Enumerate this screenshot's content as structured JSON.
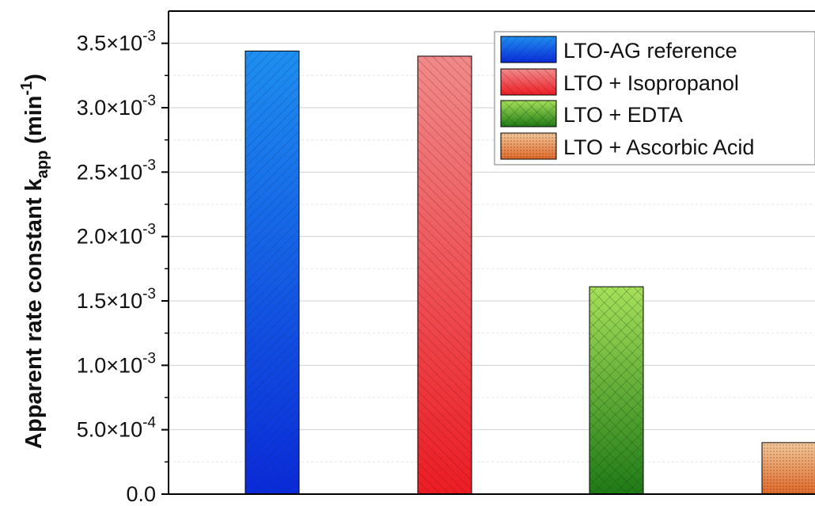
{
  "chart_data": {
    "type": "bar",
    "categories": [
      "LTO-AG reference",
      "LTO + Isopropanol",
      "LTO + EDTA",
      "LTO + Ascorbic Acid"
    ],
    "series": [
      {
        "name": "Apparent rate constant",
        "values": [
          0.00344,
          0.0034,
          0.00161,
          0.0004
        ],
        "colors": [
          "#1976e8",
          "#e8323a",
          "#6cc43a",
          "#d48a4e"
        ]
      }
    ],
    "ylabel": {
      "main": "Apparent rate constant k",
      "subscript": "app",
      "unit_open": " (min",
      "unit_sup": "-1",
      "unit_close": ")"
    },
    "ylim": [
      0,
      0.00375
    ],
    "yticks": [
      {
        "value": 0,
        "mantissa": "0.0",
        "exponent": ""
      },
      {
        "value": 0.0005,
        "mantissa": "5.0×10",
        "exponent": "-4"
      },
      {
        "value": 0.001,
        "mantissa": "1.0×10",
        "exponent": "-3"
      },
      {
        "value": 0.0015,
        "mantissa": "1.5×10",
        "exponent": "-3"
      },
      {
        "value": 0.002,
        "mantissa": "2.0×10",
        "exponent": "-3"
      },
      {
        "value": 0.0025,
        "mantissa": "2.5×10",
        "exponent": "-3"
      },
      {
        "value": 0.003,
        "mantissa": "3.0×10",
        "exponent": "-3"
      },
      {
        "value": 0.0035,
        "mantissa": "3.5×10",
        "exponent": "-3"
      }
    ],
    "grid": true,
    "legend_position": "top-right",
    "legend": [
      {
        "label": "LTO-AG reference",
        "color": "#1976e8",
        "pattern": "diag-left"
      },
      {
        "label": "LTO + Isopropanol",
        "color": "#e8323a",
        "pattern": "diag-right"
      },
      {
        "label": "LTO + EDTA",
        "color": "#6cc43a",
        "pattern": "crosshatch"
      },
      {
        "label": "LTO + Ascorbic Acid",
        "color": "#d48a4e",
        "pattern": "dots"
      }
    ]
  }
}
